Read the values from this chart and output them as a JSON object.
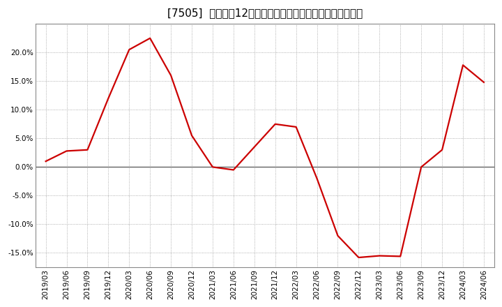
{
  "title": "[7505]  売上高の12か月移動合計の対前年同期増減率の推移",
  "line_color": "#cc0000",
  "line_width": 1.6,
  "bg_color": "#ffffff",
  "plot_bg_color": "#ffffff",
  "grid_color": "#999999",
  "zero_line_color": "#555555",
  "x_labels": [
    "2019/03",
    "2019/06",
    "2019/09",
    "2019/12",
    "2020/03",
    "2020/06",
    "2020/09",
    "2020/12",
    "2021/03",
    "2021/06",
    "2021/09",
    "2021/12",
    "2022/03",
    "2022/06",
    "2022/09",
    "2022/12",
    "2023/03",
    "2023/06",
    "2023/09",
    "2023/12",
    "2024/03",
    "2024/06"
  ],
  "y_values": [
    1.0,
    2.8,
    3.0,
    12.0,
    20.5,
    22.5,
    16.0,
    5.5,
    0.0,
    -0.5,
    3.5,
    7.5,
    7.0,
    -2.0,
    -12.0,
    -15.8,
    -15.5,
    -15.6,
    0.0,
    3.0,
    17.8,
    14.8
  ],
  "ylim": [
    -17.5,
    25.0
  ],
  "yticks": [
    -15.0,
    -10.0,
    -5.0,
    0.0,
    5.0,
    10.0,
    15.0,
    20.0
  ],
  "title_fontsize": 11,
  "tick_fontsize": 7.5,
  "figsize": [
    7.2,
    4.4
  ],
  "dpi": 100
}
